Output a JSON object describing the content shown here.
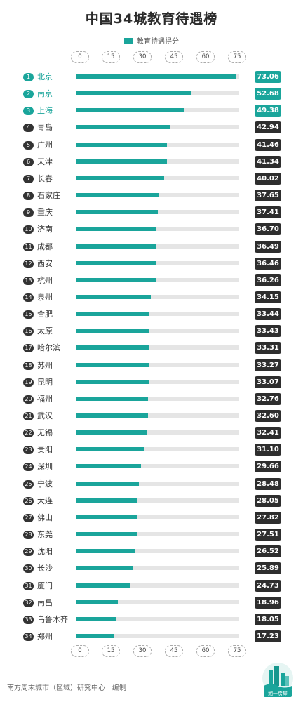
{
  "chart_data": {
    "type": "bar",
    "orientation": "horizontal",
    "title": "中国34城教育待遇榜",
    "legend": "教育待遇得分",
    "xticks": [
      "0",
      "15",
      "30",
      "45",
      "60",
      "75"
    ],
    "xlim": [
      0,
      75
    ],
    "categories": [
      "北京",
      "南京",
      "上海",
      "青岛",
      "广州",
      "天津",
      "长春",
      "石家庄",
      "重庆",
      "济南",
      "成都",
      "西安",
      "杭州",
      "泉州",
      "合肥",
      "太原",
      "哈尔滨",
      "苏州",
      "昆明",
      "福州",
      "武汉",
      "无锡",
      "贵阳",
      "深圳",
      "宁波",
      "大连",
      "佛山",
      "东莞",
      "沈阳",
      "长沙",
      "厦门",
      "南昌",
      "乌鲁木齐",
      "郑州"
    ],
    "ranks": [
      "1",
      "2",
      "3",
      "4",
      "5",
      "6",
      "7",
      "8",
      "9",
      "10",
      "11",
      "12",
      "13",
      "14",
      "15",
      "16",
      "17",
      "18",
      "19",
      "20",
      "21",
      "22",
      "23",
      "24",
      "25",
      "26",
      "27",
      "28",
      "29",
      "30",
      "31",
      "32",
      "33",
      "34"
    ],
    "values": [
      73.06,
      52.68,
      49.38,
      42.94,
      41.46,
      41.34,
      40.02,
      37.65,
      37.41,
      36.7,
      36.49,
      36.46,
      36.26,
      34.15,
      33.44,
      33.43,
      33.31,
      33.27,
      33.07,
      32.76,
      32.6,
      32.41,
      31.1,
      29.66,
      28.48,
      28.05,
      27.82,
      27.51,
      26.52,
      25.89,
      24.73,
      18.96,
      18.05,
      17.23
    ],
    "labels": [
      "73.06",
      "52.68",
      "49.38",
      "42.94",
      "41.46",
      "41.34",
      "40.02",
      "37.65",
      "37.41",
      "36.70",
      "36.49",
      "36.46",
      "36.26",
      "34.15",
      "33.44",
      "33.43",
      "33.31",
      "33.27",
      "33.07",
      "32.76",
      "32.60",
      "32.41",
      "31.10",
      "29.66",
      "28.48",
      "28.05",
      "27.82",
      "27.51",
      "26.52",
      "25.89",
      "24.73",
      "18.96",
      "18.05",
      "17.23"
    ],
    "highlight_top": 3
  },
  "colors": {
    "accent": "#1aa59b",
    "dark": "#2e2e2e",
    "track": "#e5e5e5"
  },
  "footer": "南方周末城市（区域）研究中心　编制",
  "logo_text": "湘一房屋"
}
